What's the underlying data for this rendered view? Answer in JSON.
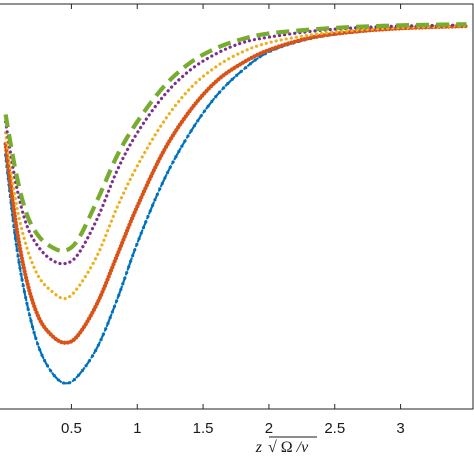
{
  "chart_data": {
    "type": "line",
    "title": "",
    "xlabel": "z√(Ω/v)",
    "ylabel": "",
    "xlim": [
      -0.05,
      3.55
    ],
    "ylim": [
      -1.05,
      0.05
    ],
    "grid": false,
    "x_ticks": [
      0.5,
      1,
      1.5,
      2,
      2.5,
      3
    ],
    "x_tick_labels": [
      "0.5",
      "1",
      "1.5",
      "2",
      "2.5",
      "3"
    ],
    "series": [
      {
        "color": "#0072bd",
        "style": "dash-dot-markers",
        "points": [
          [
            0.0,
            -0.36
          ],
          [
            0.08,
            -0.6
          ],
          [
            0.16,
            -0.76
          ],
          [
            0.25,
            -0.88
          ],
          [
            0.35,
            -0.95
          ],
          [
            0.45,
            -0.98
          ],
          [
            0.55,
            -0.96
          ],
          [
            0.7,
            -0.88
          ],
          [
            0.85,
            -0.75
          ],
          [
            1.0,
            -0.6
          ],
          [
            1.2,
            -0.43
          ],
          [
            1.4,
            -0.3
          ],
          [
            1.6,
            -0.2
          ],
          [
            1.8,
            -0.13
          ],
          [
            2.0,
            -0.08
          ],
          [
            2.3,
            -0.045
          ],
          [
            2.6,
            -0.028
          ],
          [
            3.0,
            -0.016
          ],
          [
            3.5,
            -0.01
          ]
        ]
      },
      {
        "color": "#d95319",
        "style": "thick-dotted",
        "points": [
          [
            0.0,
            -0.33
          ],
          [
            0.08,
            -0.55
          ],
          [
            0.16,
            -0.7
          ],
          [
            0.25,
            -0.8
          ],
          [
            0.35,
            -0.85
          ],
          [
            0.45,
            -0.87
          ],
          [
            0.55,
            -0.85
          ],
          [
            0.7,
            -0.76
          ],
          [
            0.85,
            -0.63
          ],
          [
            1.0,
            -0.5
          ],
          [
            1.2,
            -0.35
          ],
          [
            1.4,
            -0.24
          ],
          [
            1.6,
            -0.16
          ],
          [
            1.8,
            -0.11
          ],
          [
            2.0,
            -0.075
          ],
          [
            2.3,
            -0.043
          ],
          [
            2.6,
            -0.027
          ],
          [
            3.0,
            -0.016
          ],
          [
            3.5,
            -0.01
          ]
        ]
      },
      {
        "color": "#edb120",
        "style": "dotted",
        "points": [
          [
            0.0,
            -0.3
          ],
          [
            0.08,
            -0.49
          ],
          [
            0.16,
            -0.61
          ],
          [
            0.25,
            -0.69
          ],
          [
            0.35,
            -0.73
          ],
          [
            0.45,
            -0.75
          ],
          [
            0.55,
            -0.72
          ],
          [
            0.7,
            -0.63
          ],
          [
            0.85,
            -0.5
          ],
          [
            1.0,
            -0.39
          ],
          [
            1.2,
            -0.27
          ],
          [
            1.4,
            -0.18
          ],
          [
            1.6,
            -0.12
          ],
          [
            1.8,
            -0.08
          ],
          [
            2.0,
            -0.055
          ],
          [
            2.3,
            -0.035
          ],
          [
            2.6,
            -0.023
          ],
          [
            3.0,
            -0.014
          ],
          [
            3.5,
            -0.009
          ]
        ]
      },
      {
        "color": "#7e2f8e",
        "style": "dotted",
        "points": [
          [
            0.0,
            -0.27
          ],
          [
            0.08,
            -0.44
          ],
          [
            0.16,
            -0.55
          ],
          [
            0.25,
            -0.61
          ],
          [
            0.35,
            -0.645
          ],
          [
            0.45,
            -0.655
          ],
          [
            0.55,
            -0.63
          ],
          [
            0.7,
            -0.53
          ],
          [
            0.85,
            -0.4
          ],
          [
            1.0,
            -0.3
          ],
          [
            1.2,
            -0.2
          ],
          [
            1.4,
            -0.13
          ],
          [
            1.6,
            -0.085
          ],
          [
            1.8,
            -0.055
          ],
          [
            2.0,
            -0.04
          ],
          [
            2.3,
            -0.025
          ],
          [
            2.6,
            -0.016
          ],
          [
            3.0,
            -0.01
          ],
          [
            3.5,
            -0.007
          ]
        ]
      },
      {
        "color": "#77ac30",
        "style": "long-dash",
        "points": [
          [
            0.0,
            -0.25
          ],
          [
            0.08,
            -0.41
          ],
          [
            0.16,
            -0.52
          ],
          [
            0.25,
            -0.58
          ],
          [
            0.35,
            -0.61
          ],
          [
            0.45,
            -0.62
          ],
          [
            0.55,
            -0.59
          ],
          [
            0.7,
            -0.48
          ],
          [
            0.85,
            -0.36
          ],
          [
            1.0,
            -0.27
          ],
          [
            1.2,
            -0.175
          ],
          [
            1.4,
            -0.11
          ],
          [
            1.6,
            -0.07
          ],
          [
            1.8,
            -0.045
          ],
          [
            2.0,
            -0.03
          ],
          [
            2.3,
            -0.02
          ],
          [
            2.6,
            -0.013
          ],
          [
            3.0,
            -0.008
          ],
          [
            3.5,
            -0.005
          ]
        ]
      }
    ]
  }
}
